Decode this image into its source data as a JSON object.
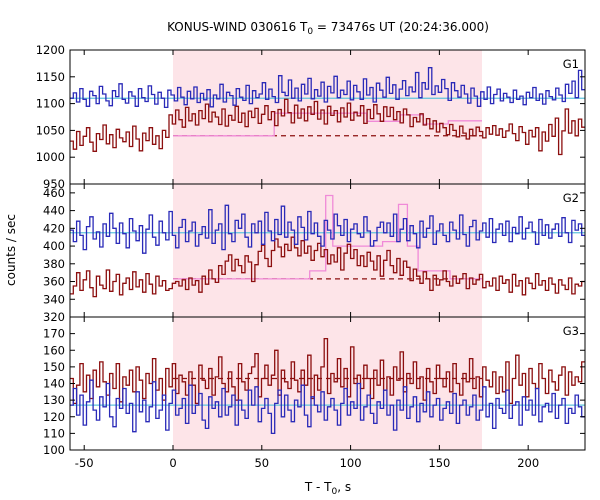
{
  "chart_data": {
    "type": "line",
    "title": {
      "prefix": "KONUS-WIND 030616 T",
      "sub": "0",
      "suffix": " = 73476s UT (20:24:36.000)"
    },
    "xlabel": {
      "prefix": "T - T",
      "sub": "0",
      "suffix": ", s"
    },
    "ylabel": "counts / sec",
    "xlim": [
      -58,
      232
    ],
    "xticks": [
      -50,
      0,
      50,
      100,
      150,
      200
    ],
    "shaded_interval": [
      0,
      174
    ],
    "grid": false,
    "colors": {
      "blue": "#2a2ab8",
      "red": "#8c0f0f",
      "cyan": "#5fc4dc",
      "pink": "#f08ad8",
      "shade": "#fde4e8"
    },
    "panels": [
      {
        "label": "G1",
        "ylim": [
          950,
          1200
        ],
        "yticks": [
          950,
          1000,
          1050,
          1100,
          1150,
          1200
        ],
        "blue_level": 1110,
        "red_level": 1040,
        "blue_values": [
          1110,
          1120,
          1103,
          1128,
          1108,
          1095,
          1123,
          1115,
          1100,
          1132,
          1118,
          1105,
          1096,
          1124,
          1113,
          1137,
          1108,
          1101,
          1122,
          1114,
          1095,
          1128,
          1111,
          1104,
          1133,
          1117,
          1099,
          1121,
          1110,
          1093,
          1125,
          1116,
          1105,
          1130,
          1112,
          1098,
          1123,
          1109,
          1131,
          1102,
          1119,
          1107,
          1126,
          1094,
          1116,
          1109,
          1136,
          1103,
          1121,
          1115,
          1097,
          1128,
          1112,
          1106,
          1134,
          1100,
          1124,
          1111,
          1118,
          1139,
          1108,
          1127,
          1113,
          1102,
          1152,
          1121,
          1115,
          1144,
          1110,
          1129,
          1105,
          1136,
          1118,
          1147,
          1109,
          1126,
          1114,
          1140,
          1103,
          1132,
          1120,
          1151,
          1111,
          1125,
          1117,
          1142,
          1107,
          1134,
          1122,
          1108,
          1146,
          1116,
          1130,
          1103,
          1138,
          1125,
          1112,
          1149,
          1119,
          1135,
          1108,
          1127,
          1143,
          1115,
          1131,
          1122,
          1158,
          1111,
          1139,
          1127,
          1167,
          1117,
          1133,
          1121,
          1145,
          1128,
          1106,
          1139,
          1124,
          1112,
          1134,
          1118,
          1101,
          1129,
          1114,
          1095,
          1122,
          1108,
          1131,
          1100,
          1117,
          1127,
          1105,
          1119,
          1112,
          1102,
          1125,
          1108,
          1114,
          1098,
          1121,
          1111,
          1130,
          1106,
          1118,
          1099,
          1124,
          1113,
          1107,
          1129,
          1116,
          1104,
          1136,
          1119,
          1142,
          1111,
          1162,
          1126
        ],
        "red_values": [
          1030,
          1015,
          1048,
          1022,
          1039,
          1055,
          1028,
          1011,
          1044,
          1033,
          1060,
          1025,
          1042,
          1018,
          1052,
          1036,
          1029,
          1047,
          1020,
          1058,
          1034,
          1012,
          1045,
          1031,
          1055,
          1024,
          1040,
          1016,
          1050,
          1037,
          1079,
          1062,
          1088,
          1070,
          1056,
          1093,
          1068,
          1081,
          1060,
          1087,
          1072,
          1099,
          1066,
          1084,
          1075,
          1061,
          1090,
          1058,
          1078,
          1069,
          1095,
          1065,
          1082,
          1057,
          1086,
          1074,
          1091,
          1063,
          1080,
          1096,
          1070,
          1085,
          1059,
          1089,
          1077,
          1108,
          1083,
          1064,
          1097,
          1073,
          1090,
          1068,
          1094,
          1080,
          1104,
          1071,
          1088,
          1062,
          1095,
          1078,
          1087,
          1066,
          1092,
          1075,
          1101,
          1069,
          1084,
          1077,
          1096,
          1063,
          1089,
          1072,
          1098,
          1081,
          1067,
          1094,
          1076,
          1093,
          1070,
          1085,
          1064,
          1090,
          1079,
          1057,
          1074,
          1066,
          1081,
          1060,
          1072,
          1053,
          1068,
          1047,
          1063,
          1055,
          1042,
          1061,
          1050,
          1038,
          1058,
          1045,
          1034,
          1052,
          1040,
          1056,
          1048,
          1036,
          1055,
          1043,
          1059,
          1041,
          1053,
          1037,
          1049,
          1062,
          1044,
          1031,
          1057,
          1046,
          1024,
          1050,
          1038,
          1055,
          1012,
          1047,
          1030,
          1061,
          1039,
          1073,
          1005,
          1049,
          1090,
          1045,
          1068,
          1040,
          1071,
          1056
        ],
        "pink_hist": [
          {
            "x0": 0,
            "x1": 57,
            "v": 1040
          },
          {
            "x0": 57,
            "x1": 109,
            "v": 1082
          },
          {
            "x0": 109,
            "x1": 128,
            "v": 1067
          },
          {
            "x0": 128,
            "x1": 141,
            "v": 1079
          },
          {
            "x0": 141,
            "x1": 155,
            "v": 1062
          },
          {
            "x0": 155,
            "x1": 174,
            "v": 1068
          }
        ]
      },
      {
        "label": "G2",
        "ylim": [
          320,
          470
        ],
        "yticks": [
          320,
          340,
          360,
          380,
          400,
          420,
          440,
          460
        ],
        "blue_level": 415,
        "red_level": 363,
        "blue_values": [
          418,
          405,
          428,
          412,
          396,
          422,
          433,
          408,
          416,
          399,
          425,
          411,
          437,
          420,
          403,
          426,
          414,
          398,
          431,
          417,
          406,
          423,
          392,
          419,
          435,
          410,
          401,
          428,
          415,
          407,
          439,
          412,
          398,
          421,
          430,
          405,
          417,
          427,
          400,
          413,
          422,
          409,
          441,
          403,
          418,
          425,
          396,
          446,
          414,
          405,
          429,
          420,
          436,
          410,
          399,
          425,
          415,
          428,
          402,
          438,
          417,
          406,
          430,
          413,
          445,
          410,
          427,
          418,
          402,
          433,
          421,
          407,
          439,
          414,
          426,
          411,
          400,
          429,
          418,
          408,
          436,
          423,
          412,
          430,
          405,
          419,
          425,
          414,
          410,
          433,
          417,
          400,
          406,
          421,
          427,
          415,
          426,
          411,
          436,
          405,
          419,
          431,
          406,
          423,
          414,
          398,
          428,
          410,
          420,
          434,
          402,
          417,
          425,
          412,
          405,
          427,
          418,
          408,
          435,
          413,
          400,
          422,
          429,
          407,
          417,
          426,
          410,
          431,
          404,
          419,
          425,
          412,
          428,
          405,
          421,
          414,
          433,
          408,
          420,
          427,
          416,
          402,
          430,
          412,
          424,
          409,
          419,
          425,
          411,
          432,
          415,
          404,
          429,
          418,
          425,
          412
        ],
        "red_values": [
          346,
          355,
          370,
          350,
          362,
          372,
          353,
          343,
          366,
          356,
          352,
          373,
          349,
          360,
          368,
          345,
          358,
          364,
          351,
          371,
          354,
          362,
          348,
          369,
          357,
          346,
          366,
          355,
          361,
          350,
          352,
          358,
          360,
          355,
          362,
          351,
          364,
          356,
          361,
          348,
          366,
          357,
          373,
          363,
          359,
          378,
          368,
          383,
          390,
          372,
          385,
          378,
          370,
          389,
          382,
          360,
          379,
          394,
          401,
          386,
          377,
          395,
          408,
          399,
          388,
          402,
          395,
          410,
          398,
          389,
          406,
          392,
          400,
          384,
          395,
          403,
          388,
          396,
          380,
          390,
          382,
          398,
          373,
          392,
          402,
          386,
          396,
          378,
          389,
          377,
          393,
          383,
          373,
          389,
          366,
          384,
          395,
          378,
          370,
          386,
          367,
          383,
          376,
          361,
          374,
          366,
          358,
          371,
          363,
          350,
          367,
          356,
          362,
          372,
          360,
          355,
          366,
          358,
          363,
          369,
          352,
          364,
          357,
          362,
          368,
          353,
          360,
          355,
          364,
          350,
          366,
          358,
          362,
          348,
          368,
          355,
          361,
          345,
          364,
          358,
          352,
          369,
          356,
          361,
          350,
          364,
          357,
          347,
          362,
          356,
          351,
          364,
          346,
          357,
          355,
          360
        ],
        "pink_hist": [
          {
            "x0": 0,
            "x1": 77,
            "v": 363
          },
          {
            "x0": 77,
            "x1": 86,
            "v": 372
          },
          {
            "x0": 86,
            "x1": 90,
            "v": 457
          },
          {
            "x0": 90,
            "x1": 118,
            "v": 400
          },
          {
            "x0": 118,
            "x1": 127,
            "v": 405
          },
          {
            "x0": 127,
            "x1": 132,
            "v": 447
          },
          {
            "x0": 132,
            "x1": 138,
            "v": 400
          },
          {
            "x0": 138,
            "x1": 156,
            "v": 372
          },
          {
            "x0": 156,
            "x1": 174,
            "v": 363
          }
        ]
      },
      {
        "label": "G3",
        "ylim": [
          100,
          180
        ],
        "yticks": [
          100,
          110,
          120,
          130,
          140,
          150,
          160,
          170
        ],
        "blue_level": 127,
        "red_level": 143,
        "blue_values": [
          127,
          137,
          121,
          133,
          115,
          129,
          142,
          124,
          118,
          132,
          126,
          140,
          120,
          114,
          131,
          125,
          137,
          122,
          128,
          111,
          135,
          123,
          130,
          117,
          126,
          141,
          119,
          124,
          133,
          112,
          128,
          136,
          121,
          125,
          131,
          116,
          139,
          122,
          127,
          134,
          118,
          113,
          132,
          125,
          129,
          120,
          137,
          121,
          126,
          133,
          115,
          130,
          124,
          119,
          136,
          127,
          138,
          117,
          125,
          131,
          122,
          110,
          128,
          136,
          120,
          133,
          124,
          117,
          130,
          126,
          139,
          121,
          114,
          132,
          127,
          123,
          135,
          118,
          126,
          131,
          124,
          115,
          128,
          137,
          121,
          129,
          125,
          140,
          118,
          126,
          133,
          122,
          116,
          129,
          125,
          136,
          121,
          127,
          112,
          130,
          124,
          138,
          119,
          126,
          132,
          117,
          128,
          123,
          135,
          120,
          127,
          131,
          118,
          125,
          129,
          122,
          134,
          116,
          127,
          130,
          121,
          126,
          133,
          118,
          124,
          138,
          120,
          128,
          113,
          131,
          125,
          122,
          136,
          119,
          127,
          129,
          115,
          132,
          124,
          130,
          121,
          137,
          117,
          126,
          128,
          123,
          134,
          119,
          127,
          131,
          116,
          125,
          122,
          133,
          126,
          120
        ],
        "red_values": [
          143,
          128,
          139,
          152,
          135,
          145,
          131,
          148,
          138,
          153,
          141,
          133,
          146,
          137,
          152,
          129,
          144,
          139,
          148,
          135,
          150,
          142,
          131,
          146,
          140,
          155,
          136,
          143,
          130,
          149,
          138,
          152,
          134,
          145,
          141,
          133,
          147,
          139,
          128,
          151,
          142,
          137,
          149,
          133,
          144,
          156,
          140,
          135,
          147,
          138,
          130,
          152,
          141,
          136,
          146,
          150,
          158,
          132,
          143,
          151,
          139,
          145,
          160,
          133,
          148,
          141,
          137,
          153,
          142,
          135,
          148,
          139,
          157,
          131,
          145,
          136,
          150,
          167,
          134,
          146,
          141,
          155,
          138,
          149,
          132,
          162,
          140,
          145,
          137,
          151,
          143,
          131,
          148,
          139,
          154,
          136,
          144,
          133,
          150,
          142,
          159,
          135,
          146,
          140,
          153,
          137,
          144,
          130,
          149,
          141,
          134,
          151,
          143,
          138,
          147,
          135,
          152,
          140,
          133,
          146,
          141,
          155,
          137,
          144,
          132,
          150,
          142,
          138,
          147,
          134,
          144,
          135,
          153,
          128,
          143,
          157,
          139,
          146,
          132,
          149,
          140,
          137,
          152,
          143,
          134,
          148,
          141,
          136,
          145,
          150,
          133,
          147,
          139,
          144,
          141,
          153
        ]
      }
    ]
  }
}
